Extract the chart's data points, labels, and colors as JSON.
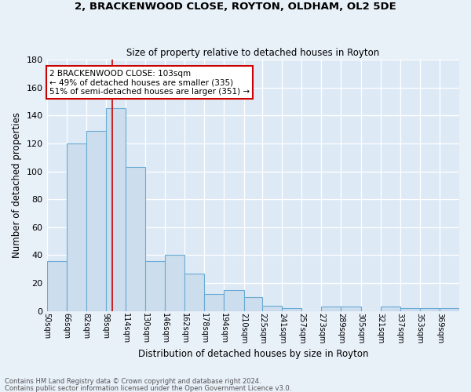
{
  "title1": "2, BRACKENWOOD CLOSE, ROYTON, OLDHAM, OL2 5DE",
  "title2": "Size of property relative to detached houses in Royton",
  "xlabel": "Distribution of detached houses by size in Royton",
  "ylabel": "Number of detached properties",
  "footnote1": "Contains HM Land Registry data © Crown copyright and database right 2024.",
  "footnote2": "Contains public sector information licensed under the Open Government Licence v3.0.",
  "bin_labels": [
    "50sqm",
    "66sqm",
    "82sqm",
    "98sqm",
    "114sqm",
    "130sqm",
    "146sqm",
    "162sqm",
    "178sqm",
    "194sqm",
    "210sqm",
    "225sqm",
    "241sqm",
    "257sqm",
    "273sqm",
    "289sqm",
    "305sqm",
    "321sqm",
    "337sqm",
    "353sqm",
    "369sqm"
  ],
  "bar_values": [
    36,
    120,
    129,
    145,
    103,
    36,
    40,
    27,
    12,
    15,
    10,
    4,
    2,
    0,
    3,
    3,
    0,
    3,
    2,
    2,
    2
  ],
  "bar_color": "#ccdded",
  "bar_edge_color": "#6aaad4",
  "background_color": "#ddeaf6",
  "grid_color": "#ffffff",
  "vline_x_data": 103,
  "vline_color": "#cc0000",
  "annotation_text_line1": "2 BRACKENWOOD CLOSE: 103sqm",
  "annotation_text_line2": "← 49% of detached houses are smaller (335)",
  "annotation_text_line3": "51% of semi-detached houses are larger (351) →",
  "annotation_box_color": "#ffffff",
  "annotation_box_edge": "#cc0000",
  "ylim": [
    0,
    180
  ],
  "yticks": [
    0,
    20,
    40,
    60,
    80,
    100,
    120,
    140,
    160,
    180
  ],
  "fig_bg_color": "#e8f0f8",
  "bin_edges": [
    50,
    66,
    82,
    98,
    114,
    130,
    146,
    162,
    178,
    194,
    210,
    225,
    241,
    257,
    273,
    289,
    305,
    321,
    337,
    353,
    369,
    385
  ]
}
